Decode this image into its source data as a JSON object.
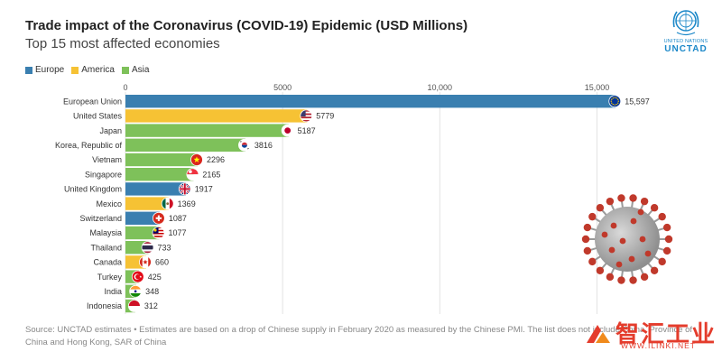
{
  "header": {
    "title": "Trade impact of the Coronavirus (COVID-19) Epidemic (USD Millions)",
    "subtitle": "Top 15 most affected economies"
  },
  "legend": [
    {
      "label": "Europe",
      "color": "#3a7fb0"
    },
    {
      "label": "America",
      "color": "#f6c234"
    },
    {
      "label": "Asia",
      "color": "#7ec15a"
    }
  ],
  "logo": {
    "top": "UNITED NATIONS",
    "name": "UNCTAD",
    "icon": "un-emblem-icon"
  },
  "chart_data": {
    "type": "bar",
    "orientation": "horizontal",
    "categories": [
      "European Union",
      "United States",
      "Japan",
      "Korea, Republic of",
      "Vietnam",
      "Singapore",
      "United Kingdom",
      "Mexico",
      "Switzerland",
      "Malaysia",
      "Thailand",
      "Canada",
      "Turkey",
      "India",
      "Indonesia"
    ],
    "values": [
      15597,
      5779,
      5187,
      3816,
      2296,
      2165,
      1917,
      1369,
      1087,
      1077,
      733,
      660,
      425,
      348,
      312
    ],
    "value_labels": [
      "15,597",
      "5779",
      "5187",
      "3816",
      "2296",
      "2165",
      "1917",
      "1369",
      "1087",
      "1077",
      "733",
      "660",
      "425",
      "348",
      "312"
    ],
    "groups": [
      "Europe",
      "America",
      "Asia",
      "Asia",
      "Asia",
      "Asia",
      "Europe",
      "America",
      "Europe",
      "Asia",
      "Asia",
      "America",
      "Asia",
      "Asia",
      "Asia"
    ],
    "flag_icons": [
      "eu-flag-icon",
      "us-flag-icon",
      "japan-flag-icon",
      "korea-flag-icon",
      "vietnam-flag-icon",
      "singapore-flag-icon",
      "uk-flag-icon",
      "mexico-flag-icon",
      "switzerland-flag-icon",
      "malaysia-flag-icon",
      "thailand-flag-icon",
      "canada-flag-icon",
      "turkey-flag-icon",
      "india-flag-icon",
      "indonesia-flag-icon"
    ],
    "xticks": [
      0,
      5000,
      10000,
      15000
    ],
    "xtick_labels": [
      "0",
      "5000",
      "10,000",
      "15,000"
    ],
    "xlim": [
      0,
      16250
    ],
    "grid": true,
    "legend_position": "top-left",
    "title": "Trade impact of the Coronavirus (COVID-19) Epidemic (USD Millions)",
    "subtitle": "Top 15 most affected economies"
  },
  "source": "Source: UNCTAD estimates • Estimates are based on a drop of Chinese supply in February 2020 as measured by the Chinese PMI. The list does not include China, Province of China and Hong Kong, SAR of China",
  "watermark": {
    "text": "智汇工业",
    "url": "WWW.ILINKI.NET"
  },
  "decoration": {
    "virus_icon": "coronavirus-icon"
  }
}
